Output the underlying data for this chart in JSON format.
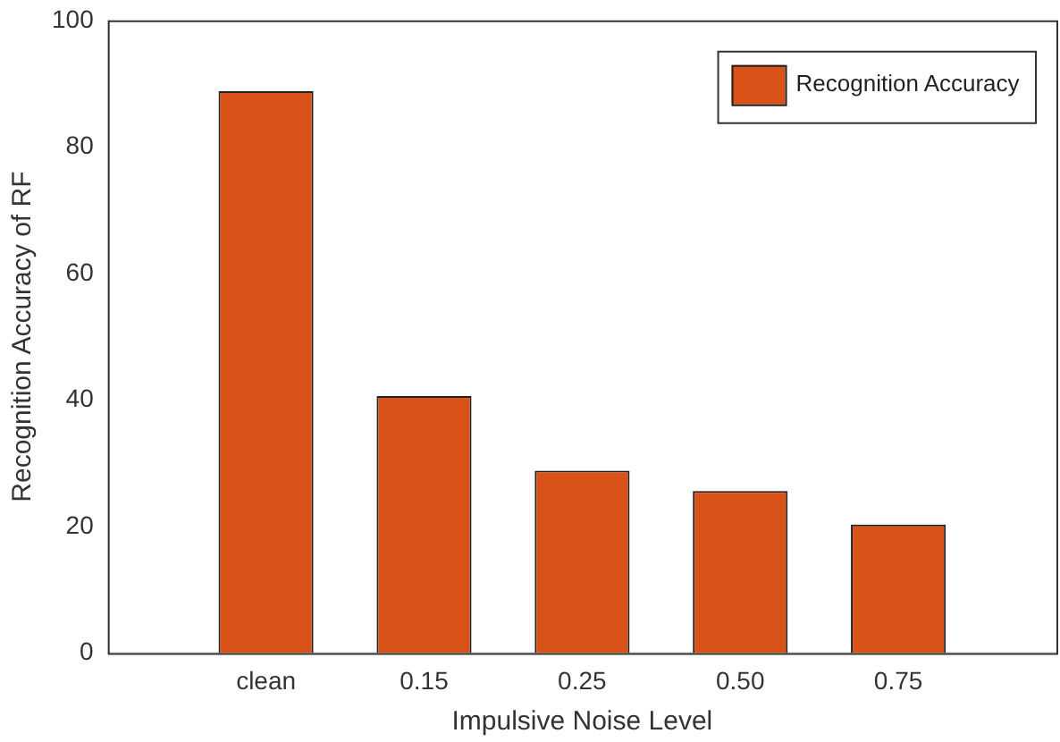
{
  "chart_data": {
    "type": "bar",
    "xlabel": "Impulsive Noise Level",
    "ylabel": "Recognition Accuracy of RF",
    "categories": [
      "clean",
      "0.15",
      "0.25",
      "0.50",
      "0.75"
    ],
    "series": [
      {
        "name": "Recognition Accuracy",
        "color": "#d95319",
        "values": [
          88.8,
          40.6,
          28.8,
          25.6,
          20.3
        ]
      }
    ],
    "ylim": [
      0,
      100
    ],
    "yticks": [
      0,
      20,
      40,
      60,
      80,
      100
    ],
    "grid": false,
    "legend": "top right"
  }
}
